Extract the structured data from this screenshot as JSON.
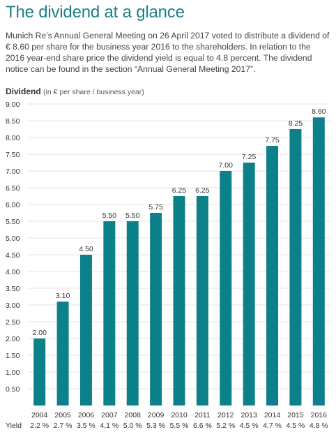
{
  "header": {
    "title": "The dividend at a glance",
    "intro": "Munich Re's Annual General Meeting on 26 April 2017 voted to distribute a dividend of € 8.60 per share for the business year 2016 to the shareholders. In relation to the 2016 year-end share price the dividend yield is equal to 4.8 percent. The dividend notice can be found in the section “Annual General Meeting 2017”."
  },
  "chart_label": {
    "main": "Dividend",
    "sub": "(in € per share / business year)"
  },
  "colors": {
    "bar": "#0d8189",
    "grid": "#e3e3e3",
    "title": "#1d7f86"
  },
  "chart_data": {
    "type": "bar",
    "title": "Dividend",
    "ylabel": "in € per share / business year",
    "ylim": [
      0,
      9
    ],
    "yticks": [
      "0.50",
      "1.00",
      "1.50",
      "2.00",
      "2.50",
      "3.00",
      "3.50",
      "4.00",
      "4.50",
      "5.00",
      "5.50",
      "6.00",
      "6.50",
      "7.00",
      "7.50",
      "8.00",
      "8.50",
      "9.00"
    ],
    "grid": true,
    "categories": [
      "2004",
      "2005",
      "2006",
      "2007",
      "2008",
      "2009",
      "2010",
      "2011",
      "2012",
      "2013",
      "2014",
      "2015",
      "2016"
    ],
    "values": [
      2.0,
      3.1,
      4.5,
      5.5,
      5.5,
      5.75,
      6.25,
      6.25,
      7.0,
      7.25,
      7.75,
      8.25,
      8.6
    ],
    "value_labels": [
      "2.00",
      "3.10",
      "4.50",
      "5.50",
      "5.50",
      "5.75",
      "6.25",
      "6.25",
      "7.00",
      "7.25",
      "7.75",
      "8.25",
      "8.60"
    ],
    "yield_label": "Yield",
    "yields": [
      "2.2 %",
      "2.7 %",
      "3.5 %",
      "4.1 %",
      "5.0 %",
      "5.3 %",
      "5.5 %",
      "6.6 %",
      "5.2 %",
      "4.5 %",
      "4.7 %",
      "4.5 %",
      "4.8 %"
    ]
  }
}
